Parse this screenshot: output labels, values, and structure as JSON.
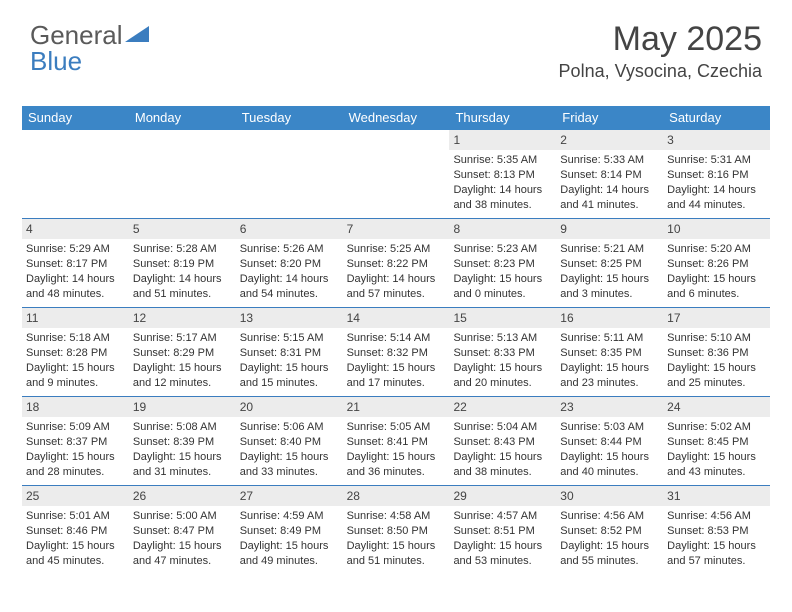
{
  "logo": {
    "part1": "General",
    "part2": "Blue"
  },
  "header": {
    "title": "May 2025",
    "location": "Polna, Vysocina, Czechia"
  },
  "colors": {
    "header_bg": "#3b86c7",
    "header_fg": "#ffffff",
    "week_border": "#3b7dbf",
    "daynum_bg": "#ececec",
    "logo_blue": "#3b7dbf"
  },
  "daynames": [
    "Sunday",
    "Monday",
    "Tuesday",
    "Wednesday",
    "Thursday",
    "Friday",
    "Saturday"
  ],
  "weeks": [
    [
      null,
      null,
      null,
      null,
      {
        "n": "1",
        "sr": "5:35 AM",
        "ss": "8:13 PM",
        "dl": "14 hours and 38 minutes."
      },
      {
        "n": "2",
        "sr": "5:33 AM",
        "ss": "8:14 PM",
        "dl": "14 hours and 41 minutes."
      },
      {
        "n": "3",
        "sr": "5:31 AM",
        "ss": "8:16 PM",
        "dl": "14 hours and 44 minutes."
      }
    ],
    [
      {
        "n": "4",
        "sr": "5:29 AM",
        "ss": "8:17 PM",
        "dl": "14 hours and 48 minutes."
      },
      {
        "n": "5",
        "sr": "5:28 AM",
        "ss": "8:19 PM",
        "dl": "14 hours and 51 minutes."
      },
      {
        "n": "6",
        "sr": "5:26 AM",
        "ss": "8:20 PM",
        "dl": "14 hours and 54 minutes."
      },
      {
        "n": "7",
        "sr": "5:25 AM",
        "ss": "8:22 PM",
        "dl": "14 hours and 57 minutes."
      },
      {
        "n": "8",
        "sr": "5:23 AM",
        "ss": "8:23 PM",
        "dl": "15 hours and 0 minutes."
      },
      {
        "n": "9",
        "sr": "5:21 AM",
        "ss": "8:25 PM",
        "dl": "15 hours and 3 minutes."
      },
      {
        "n": "10",
        "sr": "5:20 AM",
        "ss": "8:26 PM",
        "dl": "15 hours and 6 minutes."
      }
    ],
    [
      {
        "n": "11",
        "sr": "5:18 AM",
        "ss": "8:28 PM",
        "dl": "15 hours and 9 minutes."
      },
      {
        "n": "12",
        "sr": "5:17 AM",
        "ss": "8:29 PM",
        "dl": "15 hours and 12 minutes."
      },
      {
        "n": "13",
        "sr": "5:15 AM",
        "ss": "8:31 PM",
        "dl": "15 hours and 15 minutes."
      },
      {
        "n": "14",
        "sr": "5:14 AM",
        "ss": "8:32 PM",
        "dl": "15 hours and 17 minutes."
      },
      {
        "n": "15",
        "sr": "5:13 AM",
        "ss": "8:33 PM",
        "dl": "15 hours and 20 minutes."
      },
      {
        "n": "16",
        "sr": "5:11 AM",
        "ss": "8:35 PM",
        "dl": "15 hours and 23 minutes."
      },
      {
        "n": "17",
        "sr": "5:10 AM",
        "ss": "8:36 PM",
        "dl": "15 hours and 25 minutes."
      }
    ],
    [
      {
        "n": "18",
        "sr": "5:09 AM",
        "ss": "8:37 PM",
        "dl": "15 hours and 28 minutes."
      },
      {
        "n": "19",
        "sr": "5:08 AM",
        "ss": "8:39 PM",
        "dl": "15 hours and 31 minutes."
      },
      {
        "n": "20",
        "sr": "5:06 AM",
        "ss": "8:40 PM",
        "dl": "15 hours and 33 minutes."
      },
      {
        "n": "21",
        "sr": "5:05 AM",
        "ss": "8:41 PM",
        "dl": "15 hours and 36 minutes."
      },
      {
        "n": "22",
        "sr": "5:04 AM",
        "ss": "8:43 PM",
        "dl": "15 hours and 38 minutes."
      },
      {
        "n": "23",
        "sr": "5:03 AM",
        "ss": "8:44 PM",
        "dl": "15 hours and 40 minutes."
      },
      {
        "n": "24",
        "sr": "5:02 AM",
        "ss": "8:45 PM",
        "dl": "15 hours and 43 minutes."
      }
    ],
    [
      {
        "n": "25",
        "sr": "5:01 AM",
        "ss": "8:46 PM",
        "dl": "15 hours and 45 minutes."
      },
      {
        "n": "26",
        "sr": "5:00 AM",
        "ss": "8:47 PM",
        "dl": "15 hours and 47 minutes."
      },
      {
        "n": "27",
        "sr": "4:59 AM",
        "ss": "8:49 PM",
        "dl": "15 hours and 49 minutes."
      },
      {
        "n": "28",
        "sr": "4:58 AM",
        "ss": "8:50 PM",
        "dl": "15 hours and 51 minutes."
      },
      {
        "n": "29",
        "sr": "4:57 AM",
        "ss": "8:51 PM",
        "dl": "15 hours and 53 minutes."
      },
      {
        "n": "30",
        "sr": "4:56 AM",
        "ss": "8:52 PM",
        "dl": "15 hours and 55 minutes."
      },
      {
        "n": "31",
        "sr": "4:56 AM",
        "ss": "8:53 PM",
        "dl": "15 hours and 57 minutes."
      }
    ]
  ],
  "labels": {
    "sunrise": "Sunrise: ",
    "sunset": "Sunset: ",
    "daylight": "Daylight: "
  }
}
